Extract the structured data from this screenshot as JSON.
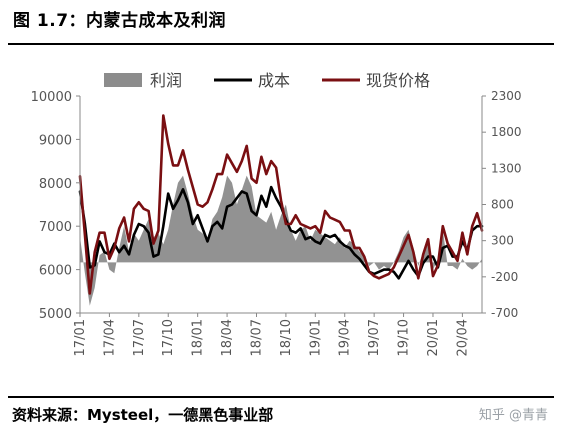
{
  "header": {
    "title": "图 1.7：内蒙古成本及利润"
  },
  "footer": {
    "source": "资料来源：Mysteel，一德黑色事业部",
    "watermark": "知乎 @青青"
  },
  "colors": {
    "profit": "#8c8c8c",
    "cost": "#000000",
    "spot": "#7a0f12"
  },
  "chart_data": {
    "type": "line",
    "title": "",
    "legend": [
      "利润",
      "成本",
      "现货价格"
    ],
    "legend_position": "top",
    "x_labels": [
      "17/01",
      "17/04",
      "17/07",
      "17/10",
      "18/01",
      "18/04",
      "18/07",
      "18/10",
      "19/01",
      "19/04",
      "19/07",
      "19/10",
      "20/01",
      "20/04"
    ],
    "y_left": {
      "lim": [
        5000,
        10000
      ],
      "ticks": [
        5000,
        6000,
        7000,
        8000,
        9000,
        10000
      ]
    },
    "y_right": {
      "lim": [
        -700,
        2300
      ],
      "ticks": [
        -700,
        -200,
        300,
        800,
        1300,
        1800,
        2300
      ]
    },
    "x_range": [
      0,
      41
    ],
    "series": [
      {
        "name": "利润",
        "axis": "right",
        "style": "area",
        "x": [
          0,
          0.5,
          1,
          1.5,
          2,
          2.5,
          3,
          3.5,
          4,
          4.5,
          5,
          5.5,
          6,
          6.5,
          7,
          7.5,
          8,
          8.5,
          9,
          9.5,
          10,
          10.5,
          11,
          11.5,
          12,
          12.5,
          13,
          13.5,
          14,
          14.5,
          15,
          15.5,
          16,
          16.5,
          17,
          17.5,
          18,
          18.5,
          19,
          19.5,
          20,
          20.5,
          21,
          21.5,
          22,
          22.5,
          23,
          23.5,
          24,
          24.5,
          25,
          25.5,
          26,
          26.5,
          27,
          27.5,
          28,
          28.5,
          29,
          29.5,
          30,
          30.5,
          31,
          31.5,
          32,
          32.5,
          33,
          33.5,
          34,
          34.5,
          35,
          35.5,
          36,
          36.5,
          37,
          37.5,
          38,
          38.5,
          39,
          39.5,
          40,
          40.5,
          41
        ],
        "values": [
          350,
          -150,
          -600,
          -350,
          100,
          150,
          -100,
          -150,
          200,
          500,
          150,
          400,
          300,
          450,
          600,
          350,
          400,
          250,
          450,
          800,
          1100,
          1200,
          950,
          650,
          450,
          400,
          300,
          600,
          700,
          900,
          1200,
          1100,
          800,
          1000,
          1200,
          1050,
          650,
          600,
          550,
          700,
          450,
          650,
          800,
          450,
          300,
          450,
          500,
          300,
          450,
          400,
          350,
          300,
          250,
          350,
          200,
          300,
          250,
          150,
          100,
          -50,
          0,
          -100,
          -50,
          -100,
          0,
          150,
          350,
          450,
          200,
          -50,
          150,
          300,
          -100,
          50,
          450,
          -50,
          -50,
          -100,
          50,
          -50,
          -100,
          -50,
          50
        ]
      },
      {
        "name": "成本",
        "axis": "left",
        "style": "line",
        "x": [
          0,
          0.5,
          1,
          1.5,
          2,
          2.5,
          3,
          3.5,
          4,
          4.5,
          5,
          5.5,
          6,
          6.5,
          7,
          7.5,
          8,
          8.5,
          9,
          9.5,
          10,
          10.5,
          11,
          11.5,
          12,
          12.5,
          13,
          13.5,
          14,
          14.5,
          15,
          15.5,
          16,
          16.5,
          17,
          17.5,
          18,
          18.5,
          19,
          19.5,
          20,
          20.5,
          21,
          21.5,
          22,
          22.5,
          23,
          23.5,
          24,
          24.5,
          25,
          25.5,
          26,
          26.5,
          27,
          27.5,
          28,
          28.5,
          29,
          29.5,
          30,
          30.5,
          31,
          31.5,
          32,
          32.5,
          33,
          33.5,
          34,
          34.5,
          35,
          35.5,
          36,
          36.5,
          37,
          37.5,
          38,
          38.5,
          39,
          39.5,
          40,
          40.5,
          41
        ],
        "values": [
          7800,
          7050,
          6050,
          6100,
          6650,
          6400,
          6350,
          6600,
          6400,
          6550,
          6350,
          6800,
          7050,
          7000,
          6850,
          6300,
          6350,
          7000,
          7750,
          7400,
          7600,
          7850,
          7550,
          7050,
          7250,
          6950,
          6650,
          7000,
          7100,
          6950,
          7450,
          7500,
          7650,
          7800,
          7750,
          7350,
          7250,
          7700,
          7450,
          7900,
          7650,
          7450,
          7150,
          6900,
          6850,
          6950,
          6700,
          6750,
          6650,
          6600,
          6800,
          6750,
          6800,
          6650,
          6550,
          6500,
          6350,
          6250,
          6100,
          5950,
          5900,
          5950,
          6000,
          6000,
          5950,
          5800,
          6000,
          6200,
          6000,
          5850,
          6150,
          6300,
          6300,
          6050,
          6500,
          6550,
          6300,
          6300,
          6650,
          6450,
          6900,
          7000,
          7000
        ]
      },
      {
        "name": "现货价格",
        "axis": "left",
        "style": "line",
        "x": [
          0,
          0.5,
          1,
          1.5,
          2,
          2.5,
          3,
          3.5,
          4,
          4.5,
          5,
          5.5,
          6,
          6.5,
          7,
          7.5,
          8,
          8.5,
          9,
          9.5,
          10,
          10.5,
          11,
          11.5,
          12,
          12.5,
          13,
          13.5,
          14,
          14.5,
          15,
          15.5,
          16,
          16.5,
          17,
          17.5,
          18,
          18.5,
          19,
          19.5,
          20,
          20.5,
          21,
          21.5,
          22,
          22.5,
          23,
          23.5,
          24,
          24.5,
          25,
          25.5,
          26,
          26.5,
          27,
          27.5,
          28,
          28.5,
          29,
          29.5,
          30,
          30.5,
          31,
          31.5,
          32,
          32.5,
          33,
          33.5,
          34,
          34.5,
          35,
          35.5,
          36,
          36.5,
          37,
          37.5,
          38,
          38.5,
          39,
          39.5,
          40,
          40.5,
          41
        ],
        "values": [
          8150,
          6800,
          5450,
          6400,
          6850,
          6850,
          6250,
          6500,
          6950,
          7200,
          6650,
          7400,
          7550,
          7400,
          7350,
          6600,
          6900,
          9550,
          8900,
          8400,
          8400,
          8750,
          8300,
          7900,
          7500,
          7450,
          7550,
          7850,
          8200,
          8200,
          8650,
          8450,
          8250,
          8500,
          8850,
          8100,
          8000,
          8600,
          8200,
          8500,
          8350,
          7600,
          7050,
          7050,
          7250,
          7050,
          7000,
          6950,
          7000,
          6850,
          7350,
          7200,
          7150,
          7100,
          6900,
          6900,
          6500,
          6500,
          6300,
          5950,
          5850,
          5800,
          5850,
          5900,
          6050,
          6300,
          6550,
          6800,
          6400,
          5800,
          6350,
          6700,
          5850,
          6100,
          7000,
          6600,
          6400,
          6200,
          6850,
          6350,
          7000,
          7300,
          6900
        ]
      }
    ]
  }
}
